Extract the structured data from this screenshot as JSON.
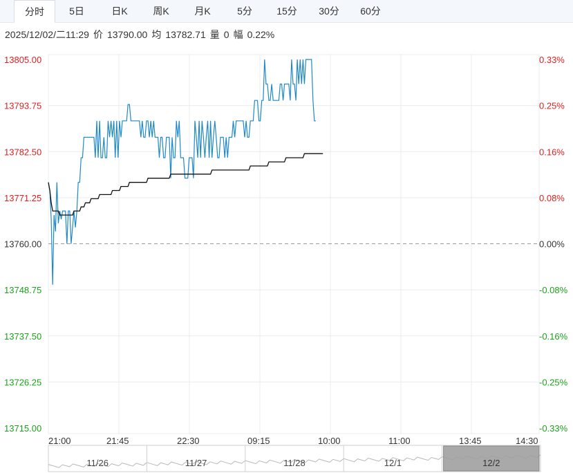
{
  "tabs": [
    {
      "label": "分时",
      "active": true
    },
    {
      "label": "5日"
    },
    {
      "label": "日K"
    },
    {
      "label": "周K"
    },
    {
      "label": "月K"
    },
    {
      "label": "5分"
    },
    {
      "label": "15分"
    },
    {
      "label": "30分"
    },
    {
      "label": "60分"
    }
  ],
  "info": {
    "datetime": "2025/12/02/二11:29",
    "price_label": "价",
    "price": "13790.00",
    "avg_label": "均",
    "avg": "13782.71",
    "vol_label": "量",
    "vol": "0",
    "amp_label": "幅",
    "amp": "0.22%"
  },
  "colors": {
    "price_line": "#1e88c8",
    "avg_line": "#111111",
    "up": "#e02020",
    "down": "#1aa31a",
    "neutral": "#333333",
    "grid": "#e8ecf0",
    "baseline": "#999999"
  },
  "chart_data": {
    "type": "line",
    "x_ticks": [
      "21:00",
      "21:45",
      "22:30",
      "09:15",
      "10:00",
      "11:00",
      "13:45",
      "14:30"
    ],
    "y_ticks_left": [
      "13805.00",
      "13793.75",
      "13782.50",
      "13771.25",
      "13760.00",
      "13748.75",
      "13737.50",
      "13726.25",
      "13715.00"
    ],
    "y_ticks_right": [
      "0.33%",
      "0.25%",
      "0.16%",
      "0.08%",
      "0.00%",
      "-0.08%",
      "-0.16%",
      "-0.25%",
      "-0.33%"
    ],
    "ylim": [
      13715.0,
      13805.0
    ],
    "prev_close": 13760.0,
    "session_minutes": 345,
    "series": [
      {
        "values": [
          13775,
          13773,
          13766,
          13750,
          13767,
          13763,
          13775,
          13765,
          13768,
          13766,
          13768,
          13768,
          13768,
          13760,
          13768,
          13768,
          13760,
          13764,
          13768,
          13764,
          13768,
          13775,
          13775,
          13781,
          13781,
          13786,
          13786,
          13786,
          13786,
          13786,
          13786,
          13786,
          13786,
          13781,
          13790,
          13781,
          13790,
          13781,
          13781,
          13786,
          13781,
          13781,
          13790,
          13786,
          13790,
          13786,
          13790,
          13781,
          13790,
          13781,
          13790,
          13786,
          13790,
          13790,
          13790,
          13790,
          13794,
          13794,
          13790,
          13790,
          13790,
          13790,
          13790,
          13790,
          13790,
          13786,
          13790,
          13786,
          13786,
          13790,
          13790,
          13786,
          13790,
          13786,
          13790,
          13786,
          13786,
          13786,
          13781,
          13786,
          13786,
          13781,
          13781,
          13786,
          13786,
          13786,
          13776,
          13786,
          13781,
          13781,
          13790,
          13786,
          13790,
          13781,
          13781,
          13781,
          13776,
          13776,
          13776,
          13781,
          13781,
          13781,
          13776,
          13790,
          13786,
          13781,
          13790,
          13781,
          13790,
          13786,
          13781,
          13786,
          13790,
          13781,
          13790,
          13781,
          13786,
          13790,
          13786,
          13781,
          13781,
          13786,
          13786,
          13786,
          13781,
          13786,
          13781,
          13786,
          13786,
          13786,
          13790,
          13786,
          13790,
          13790,
          13790,
          13790,
          13790,
          13790,
          13786,
          13790,
          13786,
          13786,
          13790,
          13790,
          13790,
          13795,
          13795,
          13795,
          13790,
          13790,
          13795,
          13795,
          13805,
          13799,
          13799,
          13795,
          13795,
          13799,
          13795,
          13795,
          13795,
          13795,
          13795,
          13799,
          13799,
          13795,
          13799,
          13799,
          13799,
          13799,
          13795,
          13805,
          13799,
          13799,
          13795,
          13805,
          13799,
          13805,
          13799,
          13805,
          13799,
          13805,
          13805,
          13805,
          13805,
          13805,
          13795,
          13790,
          13790
        ]
      },
      {
        "values": [
          13775,
          13773,
          13770,
          13768,
          13768,
          13768,
          13768,
          13768,
          13767,
          13767,
          13767,
          13767,
          13767,
          13767,
          13767,
          13767,
          13767,
          13767,
          13768,
          13768,
          13768,
          13768,
          13768,
          13769,
          13769,
          13769,
          13770,
          13770,
          13770,
          13770,
          13771,
          13771,
          13771,
          13771,
          13771,
          13771,
          13772,
          13772,
          13772,
          13772,
          13772,
          13772,
          13772,
          13772,
          13772,
          13773,
          13773,
          13773,
          13773,
          13773,
          13773,
          13774,
          13774,
          13774,
          13774,
          13774,
          13774,
          13775,
          13775,
          13775,
          13775,
          13775,
          13775,
          13775,
          13775,
          13775,
          13775,
          13775,
          13775,
          13775,
          13776,
          13776,
          13776,
          13776,
          13776,
          13776,
          13776,
          13776,
          13776,
          13776,
          13776,
          13776,
          13776,
          13776,
          13776,
          13776,
          13777,
          13777,
          13777,
          13777,
          13777,
          13777,
          13777,
          13777,
          13777,
          13777,
          13777,
          13777,
          13777,
          13777,
          13777,
          13777,
          13777,
          13777,
          13777,
          13777,
          13777,
          13777,
          13777,
          13777,
          13777,
          13777,
          13777,
          13777,
          13777,
          13778,
          13778,
          13778,
          13778,
          13778,
          13778,
          13778,
          13778,
          13778,
          13778,
          13778,
          13778,
          13778,
          13778,
          13778,
          13778,
          13778,
          13778,
          13778,
          13778,
          13778,
          13778,
          13778,
          13778,
          13778,
          13778,
          13778,
          13779,
          13779,
          13779,
          13779,
          13779,
          13779,
          13779,
          13779,
          13779,
          13779,
          13779,
          13779,
          13779,
          13780,
          13780,
          13780,
          13780,
          13780,
          13780,
          13780,
          13780,
          13780,
          13780,
          13780,
          13780,
          13781,
          13781,
          13781,
          13781,
          13781,
          13781,
          13781,
          13781,
          13781,
          13781,
          13781,
          13781,
          13781,
          13782,
          13782,
          13782,
          13782,
          13782,
          13782,
          13782,
          13782,
          13782,
          13782,
          13782,
          13782,
          13782,
          13782
        ]
      }
    ]
  },
  "navigator": {
    "dates": [
      "11/26",
      "11/27",
      "11/28",
      "12/1",
      "12/2"
    ],
    "selected_index": 4
  }
}
